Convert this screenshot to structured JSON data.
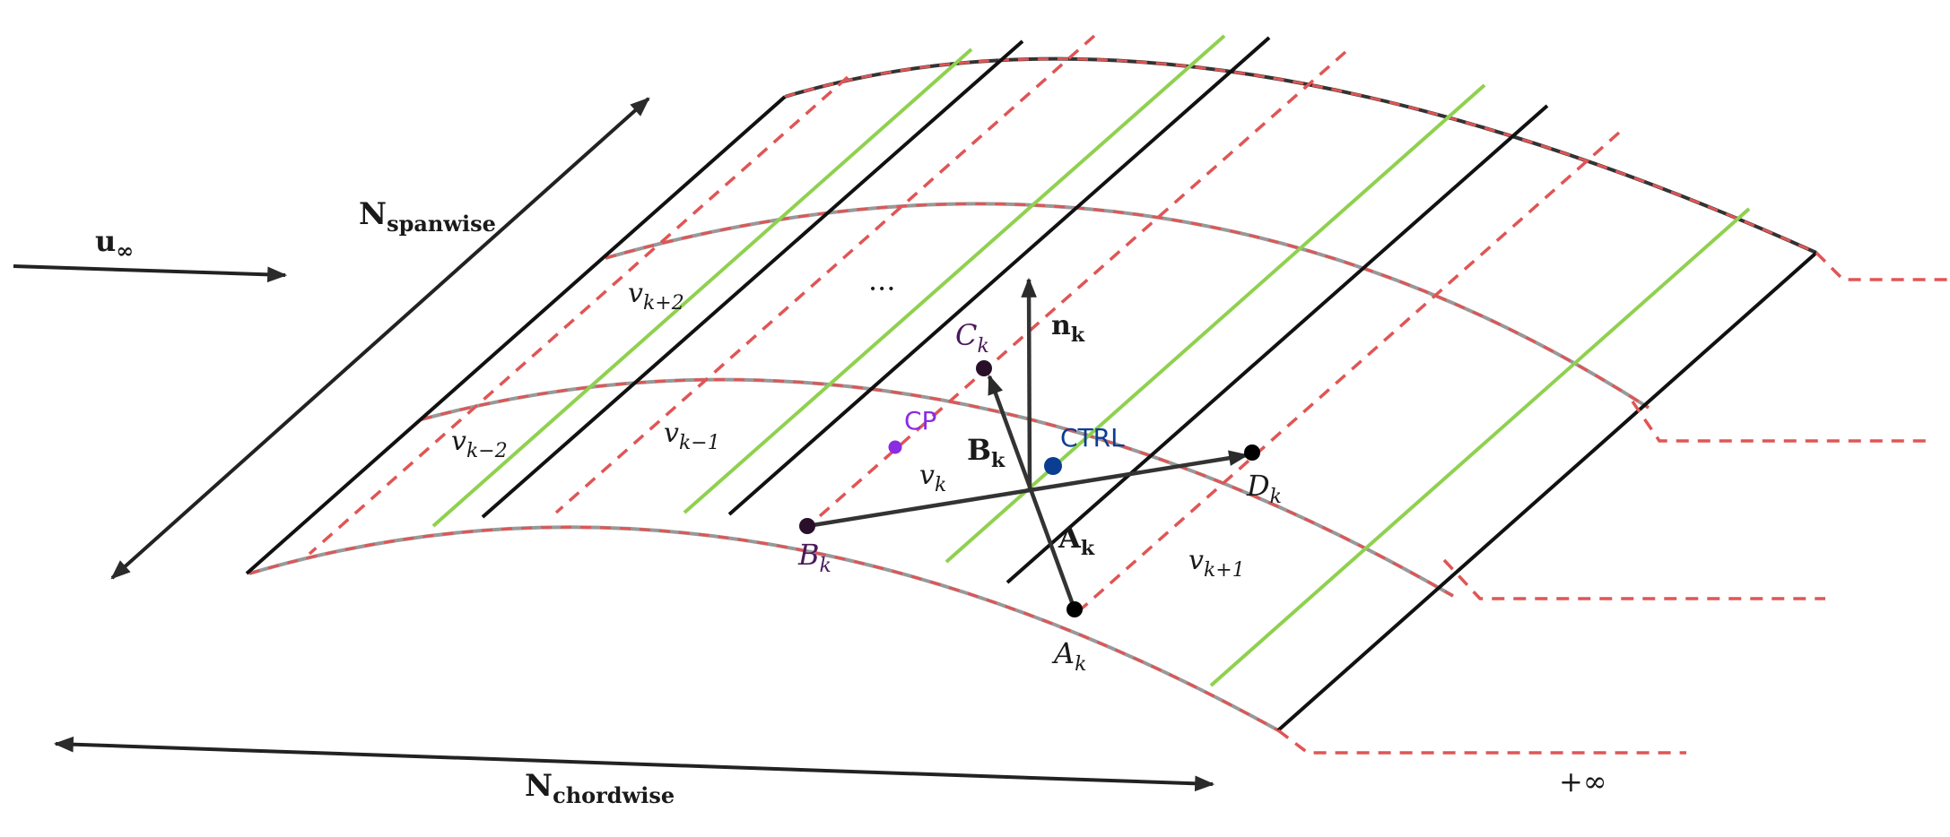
{
  "colors": {
    "panel_edge": "#111111",
    "chord_line": "#e05555",
    "quarter_chord": "#8fd14f",
    "vector": "#333333",
    "cp": "#8b2be2",
    "ctrl": "#0b3d91",
    "corner": "#2a0f2a"
  },
  "labels": {
    "u_inf_main": "u",
    "u_inf_sub": "∞",
    "n_span_main": "N",
    "n_span_sub": "spanwise",
    "n_chord_main": "N",
    "n_chord_sub": "chordwise",
    "ellipsis": "···",
    "plus_inf": "+∞",
    "v_k": {
      "main": "v",
      "sub": "k"
    },
    "v_km1": {
      "main": "v",
      "sub": "k−1"
    },
    "v_km2": {
      "main": "v",
      "sub": "k−2"
    },
    "v_kp1": {
      "main": "v",
      "sub": "k+1"
    },
    "v_kp2": {
      "main": "v",
      "sub": "k+2"
    },
    "n_k": {
      "main": "n",
      "sub": "k"
    },
    "A_vec": {
      "main": "A",
      "sub": "k"
    },
    "B_vec": {
      "main": "B",
      "sub": "k"
    },
    "A_pt": {
      "main": "A",
      "sub": "k"
    },
    "B_pt": {
      "main": "B",
      "sub": "k"
    },
    "C_pt": {
      "main": "C",
      "sub": "k"
    },
    "D_pt": {
      "main": "D",
      "sub": "k"
    },
    "cp": "CP",
    "ctrl": "CTRL"
  }
}
